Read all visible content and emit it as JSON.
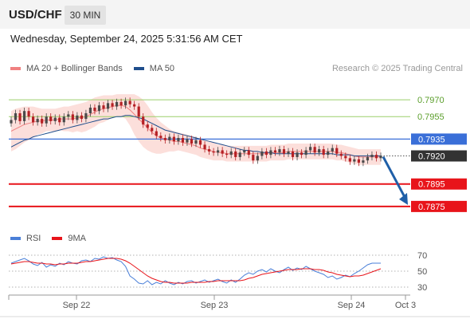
{
  "header": {
    "pair": "USD/CHF",
    "timeframe": "30 MIN"
  },
  "date_line": "Wednesday, September 24, 2025 5:31:56 AM CET",
  "legend": {
    "ma20": "MA 20 + Bollinger Bands",
    "ma50": "MA 50",
    "rsi": "RSI",
    "ma9": "9MA"
  },
  "credit": "Research © 2025 Trading Central",
  "colors": {
    "ma20_band": "#f08080",
    "ma50": "#1f4e8c",
    "resistance": "#9bcf6a",
    "pivot": "#3a6fd8",
    "support": "#e8141a",
    "last_price": "#333333",
    "candle_up": "#4a4a4a",
    "candle_down": "#b52024",
    "rsi": "#4a7fd8",
    "rsi_ma": "#e8141a"
  },
  "chart_data": [
    {
      "type": "candlestick",
      "title": "USD/CHF",
      "timeframe": "30 MIN",
      "ylim": [
        0.786,
        0.7985
      ],
      "x_ticks": [
        "Sep 22",
        "Sep 23",
        "Sep 24",
        "Oct 3"
      ],
      "levels": [
        {
          "label": "0.7970",
          "value": 0.797,
          "kind": "resistance"
        },
        {
          "label": "0.7955",
          "value": 0.7955,
          "kind": "resistance"
        },
        {
          "label": "0.7935",
          "value": 0.7935,
          "kind": "pivot"
        },
        {
          "label": "0.7895",
          "value": 0.7895,
          "kind": "support"
        },
        {
          "label": "0.7875",
          "value": 0.7875,
          "kind": "support"
        }
      ],
      "last_price": {
        "label": "0.7920",
        "value": 0.792
      },
      "closes": [
        0.7952,
        0.7958,
        0.7951,
        0.796,
        0.7955,
        0.795,
        0.7953,
        0.7949,
        0.7955,
        0.7951,
        0.7954,
        0.795,
        0.7955,
        0.7957,
        0.7952,
        0.7956,
        0.7953,
        0.7958,
        0.7963,
        0.796,
        0.7965,
        0.7962,
        0.7967,
        0.7964,
        0.7968,
        0.7965,
        0.7969,
        0.7966,
        0.7964,
        0.7955,
        0.7948,
        0.7945,
        0.7942,
        0.7938,
        0.7936,
        0.7934,
        0.7937,
        0.7933,
        0.7936,
        0.7932,
        0.7935,
        0.7931,
        0.7934,
        0.793,
        0.7926,
        0.7924,
        0.7923,
        0.7925,
        0.7922,
        0.7921,
        0.7924,
        0.7919,
        0.7923,
        0.7925,
        0.7921,
        0.7916,
        0.792,
        0.7924,
        0.7921,
        0.7925,
        0.7923,
        0.7926,
        0.7922,
        0.7924,
        0.7919,
        0.7923,
        0.7921,
        0.7925,
        0.7928,
        0.7923,
        0.7926,
        0.7921,
        0.7924,
        0.7927,
        0.7922,
        0.792,
        0.7918,
        0.7915,
        0.7917,
        0.7914,
        0.7916,
        0.7919,
        0.7921,
        0.7918,
        0.792
      ],
      "ma20": [
        0.7942,
        0.7944,
        0.7946,
        0.7948,
        0.7949,
        0.795,
        0.7951,
        0.7951,
        0.7952,
        0.7952,
        0.7952,
        0.7953,
        0.7953,
        0.7953,
        0.7953,
        0.7954,
        0.7954,
        0.7955,
        0.7957,
        0.7959,
        0.7961,
        0.7962,
        0.7963,
        0.7964,
        0.7965,
        0.7965,
        0.7964,
        0.7961,
        0.7957,
        0.7953,
        0.7949,
        0.7945,
        0.7941,
        0.7938,
        0.7936,
        0.7935,
        0.7934,
        0.7933,
        0.7933,
        0.7932,
        0.7931,
        0.793,
        0.7929,
        0.7927,
        0.7926,
        0.7925,
        0.7924,
        0.7923,
        0.7923,
        0.7922,
        0.7922,
        0.7922,
        0.7922,
        0.7922,
        0.7922,
        0.7922,
        0.7922,
        0.7922,
        0.7922,
        0.7923,
        0.7923,
        0.7923,
        0.7923,
        0.7924,
        0.7924,
        0.7924,
        0.7924,
        0.7924,
        0.7924,
        0.7924,
        0.7924,
        0.7924,
        0.7924,
        0.7924,
        0.7923,
        0.7923,
        0.7922,
        0.7921,
        0.792,
        0.7919,
        0.7919,
        0.7919,
        0.7919,
        0.7919,
        0.7919
      ],
      "bb_width": [
        0.0018,
        0.0018,
        0.0017,
        0.0016,
        0.0015,
        0.0014,
        0.0012,
        0.0011,
        0.001,
        0.001,
        0.001,
        0.001,
        0.0011,
        0.0011,
        0.0012,
        0.0012,
        0.0013,
        0.0013,
        0.0013,
        0.0013,
        0.0012,
        0.0012,
        0.0011,
        0.001,
        0.001,
        0.001,
        0.0011,
        0.0014,
        0.0018,
        0.002,
        0.0021,
        0.002,
        0.0018,
        0.0016,
        0.0014,
        0.0012,
        0.001,
        0.0009,
        0.0008,
        0.0008,
        0.0008,
        0.0008,
        0.0008,
        0.0008,
        0.0008,
        0.0008,
        0.0008,
        0.0007,
        0.0007,
        0.0007,
        0.0007,
        0.0007,
        0.0007,
        0.0007,
        0.0007,
        0.0007,
        0.0007,
        0.0007,
        0.0007,
        0.0007,
        0.0007,
        0.0007,
        0.0007,
        0.0007,
        0.0007,
        0.0007,
        0.0007,
        0.0007,
        0.0007,
        0.0007,
        0.0007,
        0.0007,
        0.0007,
        0.0007,
        0.0007,
        0.0007,
        0.0007,
        0.0007,
        0.0007,
        0.0007,
        0.0007,
        0.0007,
        0.0007,
        0.0007,
        0.0007
      ],
      "ma50": [
        0.7928,
        0.793,
        0.7932,
        0.7934,
        0.7935,
        0.7937,
        0.7938,
        0.7939,
        0.794,
        0.7941,
        0.7942,
        0.7943,
        0.7944,
        0.7945,
        0.7946,
        0.7947,
        0.7948,
        0.7949,
        0.795,
        0.7951,
        0.7952,
        0.7953,
        0.7953,
        0.7954,
        0.7955,
        0.7955,
        0.7956,
        0.7956,
        0.7955,
        0.7954,
        0.7953,
        0.7951,
        0.7949,
        0.7947,
        0.7945,
        0.7943,
        0.7942,
        0.7941,
        0.794,
        0.7939,
        0.7938,
        0.7937,
        0.7936,
        0.7935,
        0.7934,
        0.7933,
        0.7932,
        0.7931,
        0.793,
        0.7929,
        0.7928,
        0.7927,
        0.7926,
        0.7925,
        0.7925,
        0.7924,
        0.7924,
        0.7923,
        0.7923,
        0.7923,
        0.7922,
        0.7922,
        0.7922,
        0.7922,
        0.7922,
        0.7922,
        0.7922,
        0.7922,
        0.7922,
        0.7922,
        0.7922,
        0.7922,
        0.7922,
        0.7922,
        0.7921,
        0.7921,
        0.7921,
        0.7921,
        0.792,
        0.792,
        0.792,
        0.792,
        0.792,
        0.792,
        0.792
      ],
      "projection": {
        "from": 0.792,
        "to": 0.7875
      }
    },
    {
      "type": "line",
      "title": "RSI",
      "ylim": [
        25,
        78
      ],
      "y_ticks": [
        70,
        50,
        30
      ],
      "series": [
        {
          "name": "RSI",
          "values": [
            60,
            62,
            64,
            66,
            63,
            59,
            57,
            61,
            55,
            58,
            56,
            60,
            58,
            62,
            60,
            59,
            63,
            64,
            62,
            66,
            65,
            68,
            66,
            67,
            64,
            62,
            56,
            44,
            40,
            35,
            34,
            38,
            33,
            36,
            34,
            38,
            35,
            33,
            36,
            34,
            37,
            38,
            35,
            37,
            39,
            36,
            38,
            40,
            37,
            35,
            39,
            36,
            40,
            45,
            48,
            46,
            50,
            52,
            49,
            53,
            50,
            48,
            52,
            55,
            51,
            54,
            52,
            56,
            53,
            50,
            48,
            46,
            42,
            44,
            40,
            42,
            45,
            43,
            47,
            50,
            54,
            58,
            60,
            60,
            60
          ]
        },
        {
          "name": "9MA",
          "values": [
            59,
            60,
            61,
            62,
            62,
            61,
            60,
            60,
            59,
            59,
            58,
            59,
            59,
            60,
            60,
            60,
            61,
            62,
            62,
            63,
            64,
            65,
            66,
            66,
            66,
            65,
            63,
            60,
            56,
            52,
            48,
            44,
            41,
            39,
            37,
            36,
            36,
            35,
            35,
            35,
            35,
            36,
            36,
            36,
            36,
            37,
            37,
            38,
            38,
            38,
            38,
            38,
            38,
            39,
            41,
            42,
            44,
            46,
            47,
            48,
            49,
            50,
            51,
            52,
            52,
            52,
            53,
            53,
            53,
            52,
            52,
            51,
            49,
            48,
            46,
            45,
            44,
            43,
            44,
            44,
            45,
            47,
            49,
            51,
            53
          ]
        }
      ]
    }
  ]
}
